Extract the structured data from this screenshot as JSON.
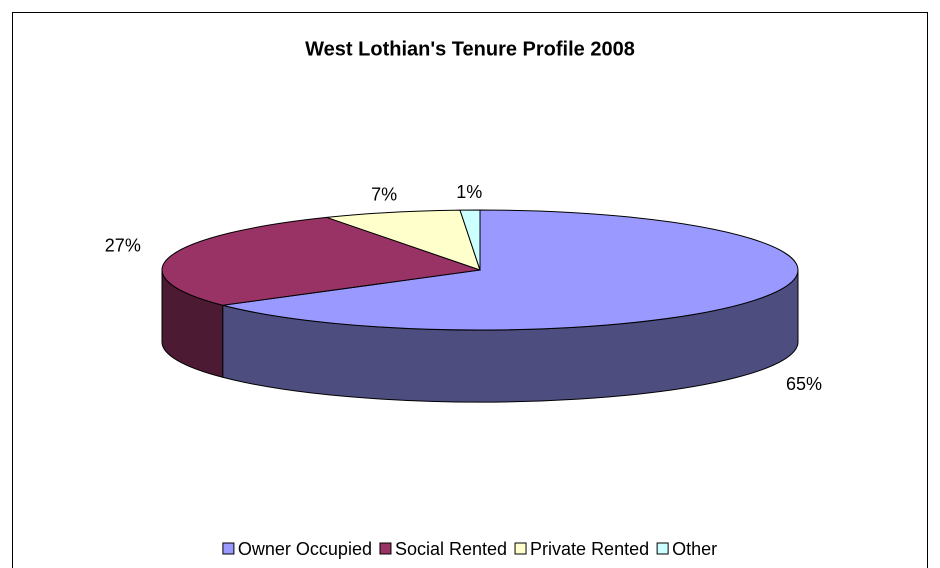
{
  "chart_data": {
    "type": "pie",
    "title": "West Lothian's Tenure Profile 2008",
    "categories": [
      "Owner Occupied",
      "Social Rented",
      "Private Rented",
      "Other"
    ],
    "values": [
      65,
      27,
      7,
      1
    ],
    "value_labels": [
      "65%",
      "27%",
      "7%",
      "1%"
    ],
    "colors": [
      "#9999ff",
      "#993366",
      "#ffffcc",
      "#ccffff"
    ],
    "legend": "bottom"
  }
}
